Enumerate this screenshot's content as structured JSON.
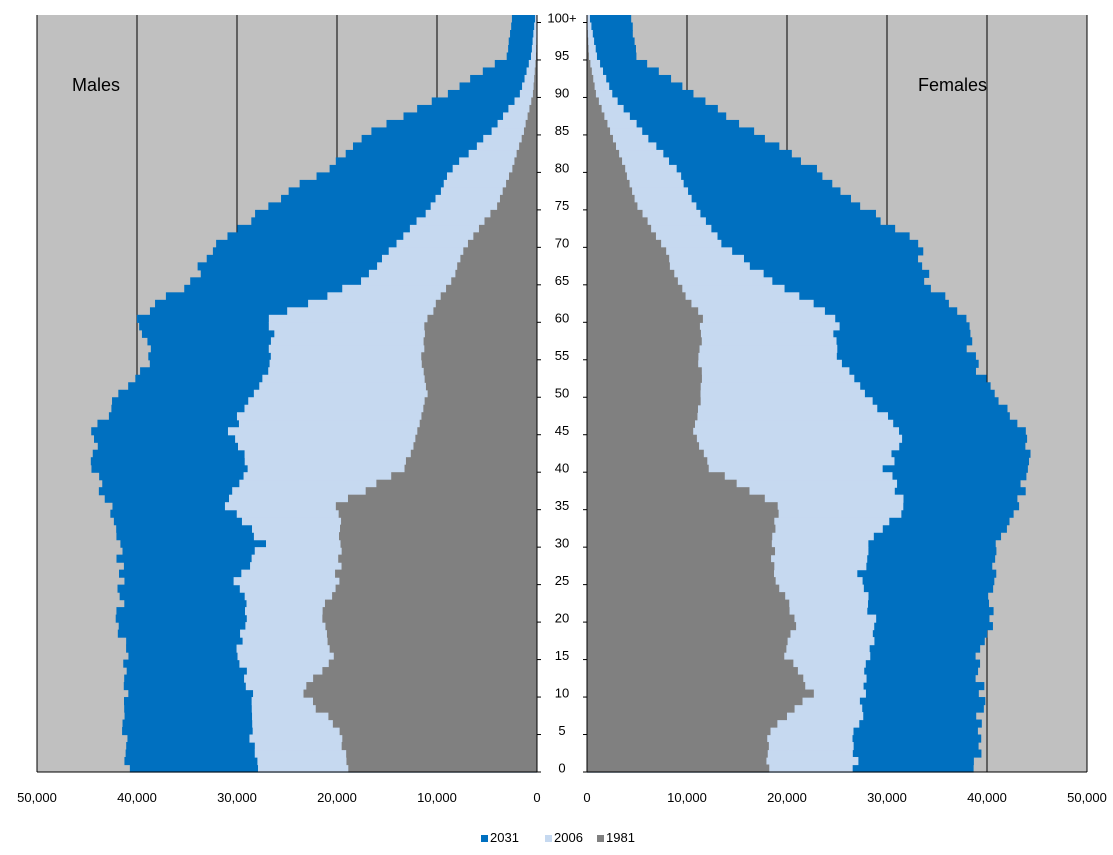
{
  "chart_data": {
    "type": "bar",
    "subtype": "population-pyramid",
    "orientation": "horizontal",
    "panels": [
      {
        "name": "Males",
        "direction": "left"
      },
      {
        "name": "Females",
        "direction": "right"
      }
    ],
    "age_axis": {
      "min": 0,
      "max": 100,
      "tick_labels": [
        "0",
        "5",
        "10",
        "15",
        "20",
        "25",
        "30",
        "35",
        "40",
        "45",
        "50",
        "55",
        "60",
        "65",
        "70",
        "75",
        "80",
        "85",
        "90",
        "95",
        "100+"
      ]
    },
    "value_axis": {
      "left_tick_labels": [
        "50,000",
        "40,000",
        "30,000",
        "20,000",
        "10,000",
        "0"
      ],
      "right_tick_labels": [
        "0",
        "10,000",
        "20,000",
        "30,000",
        "40,000",
        "50,000"
      ],
      "xlim": [
        0,
        50000
      ],
      "grid": true,
      "plot_background": "#c0c0c0",
      "grid_color": "#000000"
    },
    "legend": {
      "position": "bottom-center",
      "items": [
        {
          "name": "2031",
          "color": "#0070c0"
        },
        {
          "name": "2006",
          "color": "#c6d9f0"
        },
        {
          "name": "1981",
          "color": "#808080"
        }
      ]
    },
    "series": [
      {
        "name": "2031",
        "color": "#0070c0",
        "anchors_age": [
          0,
          5,
          10,
          15,
          20,
          25,
          30,
          35,
          40,
          45,
          50,
          55,
          60,
          65,
          70,
          75,
          80,
          85,
          90,
          95,
          100
        ],
        "males": [
          41000,
          41200,
          41300,
          41000,
          41800,
          41500,
          41800,
          42800,
          44300,
          44300,
          41500,
          38500,
          40000,
          34500,
          32000,
          27000,
          21000,
          16500,
          9000,
          3000,
          2500
        ],
        "females": [
          39000,
          39200,
          39500,
          38800,
          40500,
          40500,
          41300,
          43000,
          44200,
          44200,
          40500,
          38500,
          38000,
          34000,
          33000,
          27500,
          23000,
          16500,
          10500,
          5000,
          4400
        ]
      },
      {
        "name": "2006",
        "color": "#c6d9f0",
        "anchors_age": [
          0,
          5,
          10,
          15,
          20,
          25,
          30,
          35,
          40,
          45,
          50,
          55,
          60,
          65,
          70,
          75,
          80,
          85,
          90,
          95,
          100
        ],
        "males": [
          28300,
          28400,
          28500,
          29800,
          29000,
          30000,
          27500,
          31000,
          29000,
          30500,
          28200,
          26500,
          26500,
          17500,
          14000,
          10500,
          8500,
          4500,
          1700,
          600,
          200
        ],
        "females": [
          26700,
          27000,
          27800,
          28200,
          28500,
          27300,
          28000,
          32000,
          30000,
          31500,
          27500,
          25000,
          25000,
          18500,
          13500,
          11000,
          9000,
          5500,
          2500,
          1000,
          300
        ]
      },
      {
        "name": "1981",
        "color": "#808080",
        "anchors_age": [
          0,
          5,
          10,
          15,
          20,
          25,
          30,
          35,
          40,
          45,
          50,
          55,
          60,
          65,
          70,
          75,
          80,
          85,
          90,
          95,
          100
        ],
        "males": [
          19000,
          19500,
          23500,
          20500,
          21700,
          20000,
          19500,
          20000,
          13300,
          12000,
          11000,
          11500,
          11000,
          8500,
          7000,
          4000,
          2500,
          1300,
          400,
          100,
          0
        ],
        "females": [
          18000,
          18300,
          22500,
          19800,
          21000,
          18800,
          18500,
          19000,
          12300,
          10500,
          11500,
          11200,
          11500,
          9000,
          7500,
          5000,
          3800,
          2300,
          900,
          200,
          0
        ]
      }
    ]
  }
}
